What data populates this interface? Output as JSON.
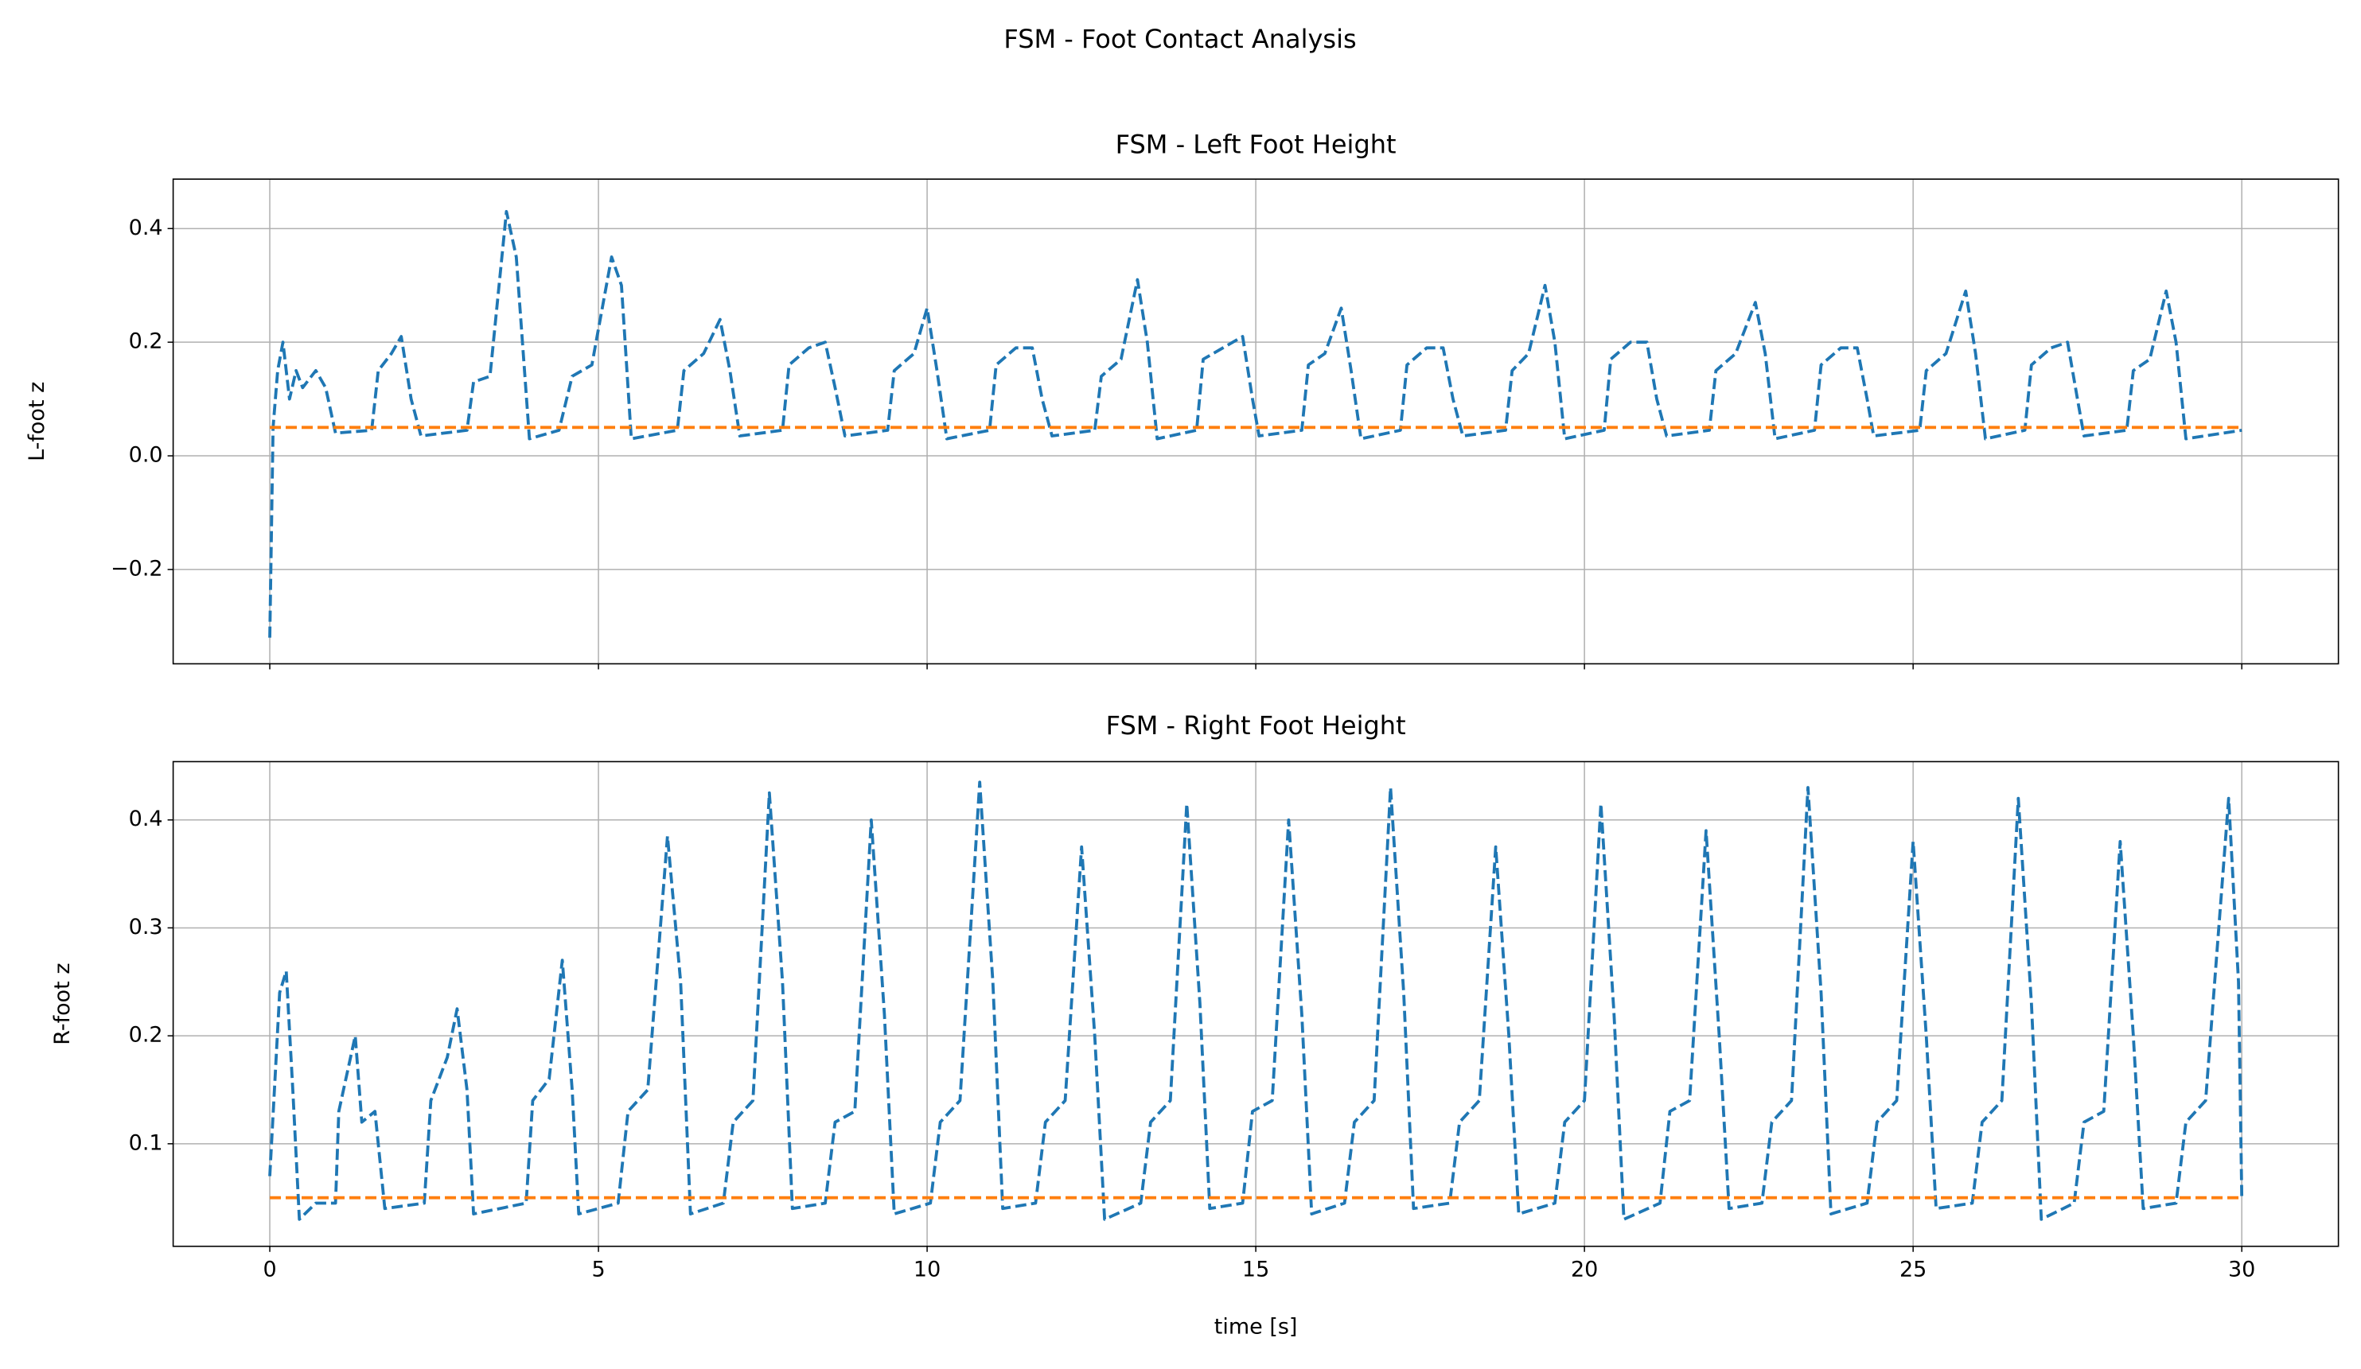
{
  "title": "FSM - Foot Contact Analysis",
  "chart_data": [
    {
      "type": "line",
      "title": "FSM - Left Foot Height",
      "ylabel": "L-foot z",
      "xlim": [
        -1.47,
        31.47
      ],
      "ylim": [
        -0.366,
        0.487
      ],
      "xticks": [
        0,
        5,
        10,
        15,
        20,
        25,
        30
      ],
      "show_xticklabels": false,
      "yticks": [
        {
          "value": -0.2,
          "label": "−0.2"
        },
        {
          "value": 0,
          "label": "0.0"
        },
        0.2,
        0.4
      ],
      "grid": true,
      "series": [
        {
          "color": "#1f77b4",
          "dashed": true,
          "x": [
            0,
            0.05,
            0.12,
            0.2,
            0.3,
            0.4,
            0.5,
            0.7,
            0.85,
            1.0,
            1.55,
            1.65,
            1.85,
            2.0,
            2.15,
            2.3,
            3.0,
            3.1,
            3.35,
            3.6,
            3.75,
            3.95,
            4.4,
            4.6,
            4.9,
            5.2,
            5.35,
            5.5,
            6.2,
            6.3,
            6.6,
            6.85,
            7.0,
            7.15,
            7.8,
            7.9,
            8.2,
            8.45,
            8.6,
            8.75,
            9.4,
            9.5,
            9.8,
            10.0,
            10.15,
            10.3,
            10.95,
            11.05,
            11.35,
            11.6,
            11.75,
            11.9,
            12.55,
            12.65,
            12.95,
            13.2,
            13.35,
            13.5,
            14.1,
            14.2,
            14.5,
            14.8,
            14.95,
            15.05,
            15.7,
            15.8,
            16.05,
            16.3,
            16.45,
            16.6,
            17.2,
            17.3,
            17.6,
            17.85,
            18.0,
            18.15,
            18.8,
            18.9,
            19.15,
            19.4,
            19.55,
            19.7,
            20.3,
            20.4,
            20.7,
            20.95,
            21.1,
            21.25,
            21.9,
            22.0,
            22.3,
            22.6,
            22.75,
            22.9,
            23.5,
            23.6,
            23.9,
            24.15,
            24.3,
            24.4,
            25.1,
            25.2,
            25.5,
            25.8,
            25.95,
            26.1,
            26.7,
            26.8,
            27.1,
            27.35,
            27.5,
            27.6,
            28.25,
            28.35,
            28.6,
            28.85,
            29.0,
            29.15,
            30.0
          ],
          "values": [
            -0.32,
            0.05,
            0.15,
            0.2,
            0.1,
            0.15,
            0.12,
            0.15,
            0.12,
            0.04,
            0.045,
            0.15,
            0.18,
            0.21,
            0.1,
            0.035,
            0.045,
            0.13,
            0.14,
            0.43,
            0.35,
            0.03,
            0.045,
            0.14,
            0.16,
            0.35,
            0.3,
            0.03,
            0.045,
            0.15,
            0.18,
            0.24,
            0.15,
            0.035,
            0.045,
            0.16,
            0.19,
            0.2,
            0.12,
            0.035,
            0.045,
            0.15,
            0.18,
            0.26,
            0.15,
            0.03,
            0.045,
            0.16,
            0.19,
            0.19,
            0.1,
            0.035,
            0.045,
            0.14,
            0.17,
            0.31,
            0.2,
            0.03,
            0.045,
            0.17,
            0.19,
            0.21,
            0.1,
            0.035,
            0.045,
            0.16,
            0.18,
            0.26,
            0.15,
            0.03,
            0.045,
            0.16,
            0.19,
            0.19,
            0.1,
            0.035,
            0.045,
            0.15,
            0.18,
            0.3,
            0.2,
            0.03,
            0.045,
            0.17,
            0.2,
            0.2,
            0.1,
            0.035,
            0.045,
            0.15,
            0.18,
            0.27,
            0.18,
            0.03,
            0.045,
            0.16,
            0.19,
            0.19,
            0.1,
            0.035,
            0.045,
            0.15,
            0.18,
            0.29,
            0.18,
            0.03,
            0.045,
            0.16,
            0.19,
            0.2,
            0.1,
            0.035,
            0.045,
            0.15,
            0.17,
            0.29,
            0.2,
            0.03,
            0.045
          ]
        },
        {
          "color": "#ff7f0e",
          "dashed": true,
          "x": [
            0,
            30
          ],
          "values": [
            0.05,
            0.05
          ]
        }
      ]
    },
    {
      "type": "line",
      "title": "FSM - Right Foot Height",
      "ylabel": "R-foot z",
      "xlabel": "time [s]",
      "xlim": [
        -1.47,
        31.47
      ],
      "ylim": [
        0.005,
        0.454
      ],
      "xticks": [
        0,
        5,
        10,
        15,
        20,
        25,
        30
      ],
      "show_xticklabels": true,
      "yticks": [
        0.1,
        0.2,
        0.3,
        0.4
      ],
      "grid": true,
      "series": [
        {
          "color": "#1f77b4",
          "dashed": true,
          "x": [
            0,
            0.15,
            0.25,
            0.35,
            0.45,
            0.7,
            1.0,
            1.05,
            1.3,
            1.4,
            1.6,
            1.75,
            2.35,
            2.45,
            2.7,
            2.85,
            3.0,
            3.1,
            3.9,
            4.0,
            4.25,
            4.45,
            4.6,
            4.7,
            5.3,
            5.45,
            5.75,
            6.05,
            6.25,
            6.4,
            6.9,
            7.05,
            7.35,
            7.6,
            7.8,
            7.95,
            8.45,
            8.6,
            8.9,
            9.15,
            9.35,
            9.5,
            10.05,
            10.2,
            10.5,
            10.8,
            11.0,
            11.15,
            11.65,
            11.8,
            12.1,
            12.35,
            12.55,
            12.7,
            13.25,
            13.4,
            13.7,
            13.95,
            14.15,
            14.3,
            14.8,
            14.95,
            15.25,
            15.5,
            15.7,
            15.85,
            16.35,
            16.5,
            16.8,
            17.05,
            17.25,
            17.4,
            17.95,
            18.1,
            18.4,
            18.65,
            18.85,
            19.0,
            19.55,
            19.7,
            20.0,
            20.25,
            20.45,
            20.6,
            21.15,
            21.3,
            21.6,
            21.85,
            22.05,
            22.2,
            22.7,
            22.85,
            23.15,
            23.4,
            23.6,
            23.75,
            24.3,
            24.45,
            24.75,
            25.0,
            25.2,
            25.35,
            25.9,
            26.05,
            26.35,
            26.6,
            26.8,
            26.95,
            27.45,
            27.6,
            27.9,
            28.15,
            28.35,
            28.5,
            29.0,
            29.15,
            29.45,
            29.8,
            29.95,
            30.0
          ],
          "values": [
            0.07,
            0.24,
            0.26,
            0.15,
            0.03,
            0.045,
            0.045,
            0.13,
            0.2,
            0.12,
            0.13,
            0.04,
            0.045,
            0.14,
            0.18,
            0.225,
            0.15,
            0.035,
            0.045,
            0.14,
            0.16,
            0.27,
            0.15,
            0.035,
            0.045,
            0.13,
            0.15,
            0.385,
            0.25,
            0.035,
            0.045,
            0.12,
            0.14,
            0.425,
            0.25,
            0.04,
            0.045,
            0.12,
            0.13,
            0.4,
            0.22,
            0.035,
            0.045,
            0.12,
            0.14,
            0.435,
            0.25,
            0.04,
            0.045,
            0.12,
            0.14,
            0.375,
            0.2,
            0.03,
            0.045,
            0.12,
            0.14,
            0.415,
            0.23,
            0.04,
            0.045,
            0.13,
            0.14,
            0.4,
            0.22,
            0.035,
            0.045,
            0.12,
            0.14,
            0.43,
            0.24,
            0.04,
            0.045,
            0.12,
            0.14,
            0.375,
            0.2,
            0.035,
            0.045,
            0.12,
            0.14,
            0.415,
            0.22,
            0.03,
            0.045,
            0.13,
            0.14,
            0.39,
            0.2,
            0.04,
            0.045,
            0.12,
            0.14,
            0.43,
            0.24,
            0.035,
            0.045,
            0.12,
            0.14,
            0.38,
            0.2,
            0.04,
            0.045,
            0.12,
            0.14,
            0.42,
            0.23,
            0.03,
            0.045,
            0.12,
            0.13,
            0.38,
            0.2,
            0.04,
            0.045,
            0.12,
            0.14,
            0.42,
            0.25,
            0.05
          ]
        },
        {
          "color": "#ff7f0e",
          "dashed": true,
          "x": [
            0,
            30
          ],
          "values": [
            0.05,
            0.05
          ]
        }
      ]
    }
  ]
}
